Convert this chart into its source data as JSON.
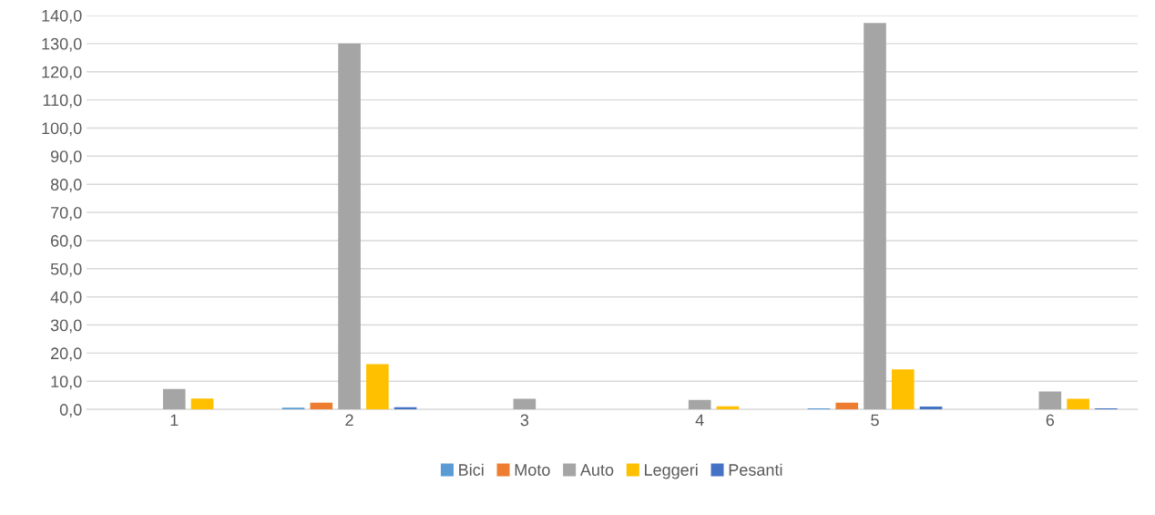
{
  "chart_data": {
    "type": "bar",
    "categories": [
      "1",
      "2",
      "3",
      "4",
      "5",
      "6"
    ],
    "series": [
      {
        "name": "Bici",
        "color": "#5b9bd5",
        "values": [
          0,
          0.6,
          0,
          0,
          0.4,
          0
        ]
      },
      {
        "name": "Moto",
        "color": "#ed7d31",
        "values": [
          0,
          2.4,
          0,
          0,
          2.4,
          0
        ]
      },
      {
        "name": "Auto",
        "color": "#a5a5a5",
        "values": [
          7.3,
          130.0,
          3.8,
          3.4,
          137.3,
          6.4
        ]
      },
      {
        "name": "Leggeri",
        "color": "#ffc000",
        "values": [
          3.9,
          16.1,
          0,
          1.1,
          14.2,
          3.8
        ]
      },
      {
        "name": "Pesanti",
        "color": "#4472c4",
        "values": [
          0,
          0.8,
          0,
          0,
          1.0,
          0.4
        ]
      }
    ],
    "ylim": [
      0,
      140
    ],
    "yticks": [
      {
        "value": 0,
        "label": "0,0"
      },
      {
        "value": 10,
        "label": "10,0"
      },
      {
        "value": 20,
        "label": "20,0"
      },
      {
        "value": 30,
        "label": "30,0"
      },
      {
        "value": 40,
        "label": "40,0"
      },
      {
        "value": 50,
        "label": "50,0"
      },
      {
        "value": 60,
        "label": "60,0"
      },
      {
        "value": 70,
        "label": "70,0"
      },
      {
        "value": 80,
        "label": "80,0"
      },
      {
        "value": 90,
        "label": "90,0"
      },
      {
        "value": 100,
        "label": "100,0"
      },
      {
        "value": 110,
        "label": "110,0"
      },
      {
        "value": 120,
        "label": "120,0"
      },
      {
        "value": 130,
        "label": "130,0"
      },
      {
        "value": 140,
        "label": "140,0"
      }
    ],
    "grid": "y",
    "legend": "bottom"
  }
}
